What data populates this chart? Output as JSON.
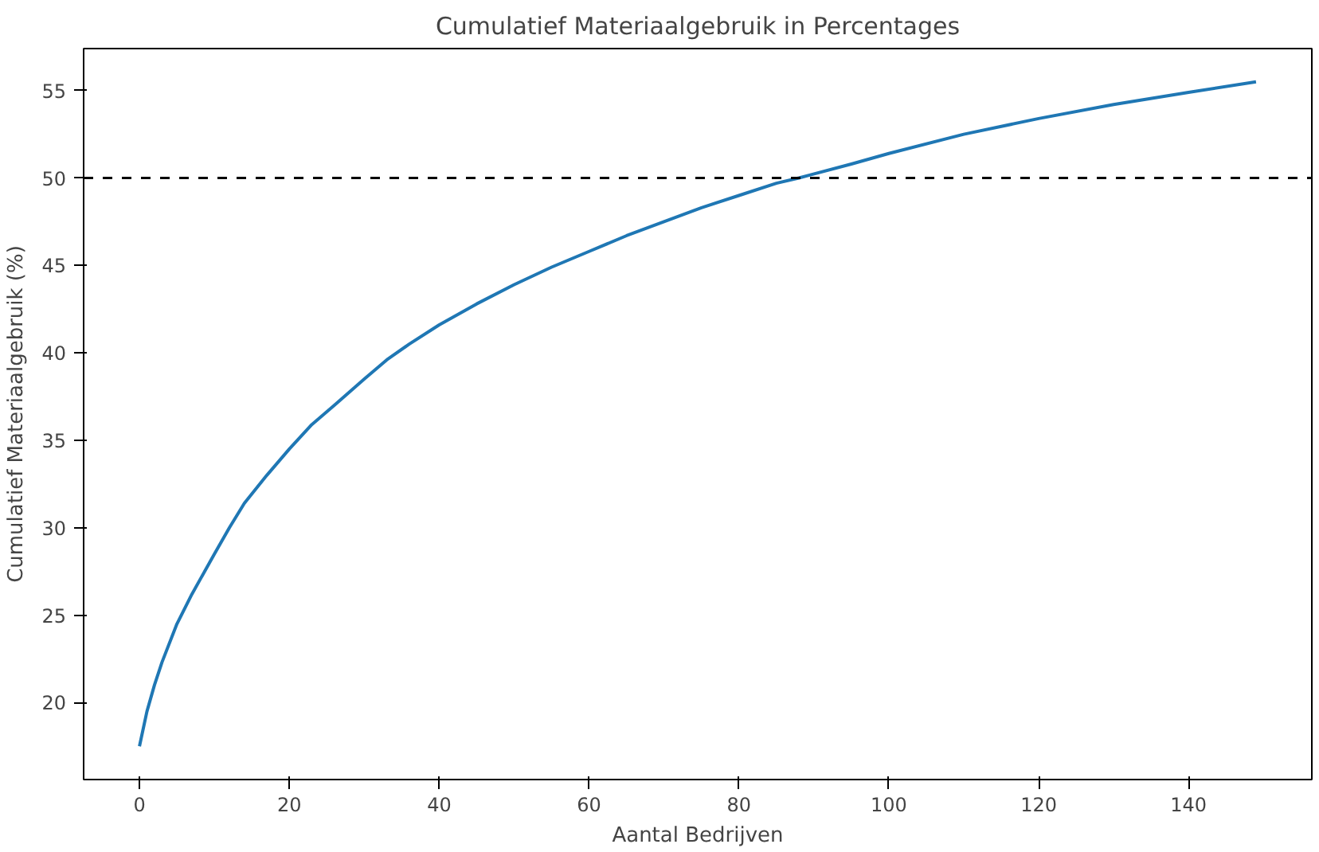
{
  "chart_data": {
    "type": "line",
    "title": "Cumulatief Materiaalgebruik in Percentages",
    "xlabel": "Aantal Bedrijven",
    "ylabel": "Cumulatief Materiaalgebruik (%)",
    "x": [
      0,
      1,
      2,
      3,
      5,
      7,
      10,
      12,
      14,
      17,
      20,
      23,
      26,
      30,
      33,
      36,
      40,
      45,
      50,
      55,
      60,
      65,
      70,
      75,
      80,
      85,
      88,
      95,
      100,
      110,
      120,
      130,
      140,
      149
    ],
    "series": [
      {
        "color": "#1f77b4",
        "values": [
          17.5,
          19.5,
          21.0,
          22.3,
          24.5,
          26.2,
          28.5,
          30.0,
          31.4,
          33.0,
          34.5,
          35.9,
          37.0,
          38.5,
          39.6,
          40.5,
          41.6,
          42.8,
          43.9,
          44.9,
          45.8,
          46.7,
          47.5,
          48.3,
          49.0,
          49.7,
          50.0,
          50.8,
          51.4,
          52.5,
          53.4,
          54.2,
          54.9,
          55.5
        ]
      }
    ],
    "xlim": [
      -7.45,
      156.45
    ],
    "ylim": [
      15.6,
      57.4
    ],
    "xticks": [
      0,
      20,
      40,
      60,
      80,
      100,
      120,
      140
    ],
    "yticks": [
      20,
      25,
      30,
      35,
      40,
      45,
      50,
      55
    ],
    "ref_lines": [
      {
        "axis": "y",
        "value": 50,
        "color": "#000000",
        "line_style": "dashed"
      }
    ],
    "line_style": "solid"
  }
}
